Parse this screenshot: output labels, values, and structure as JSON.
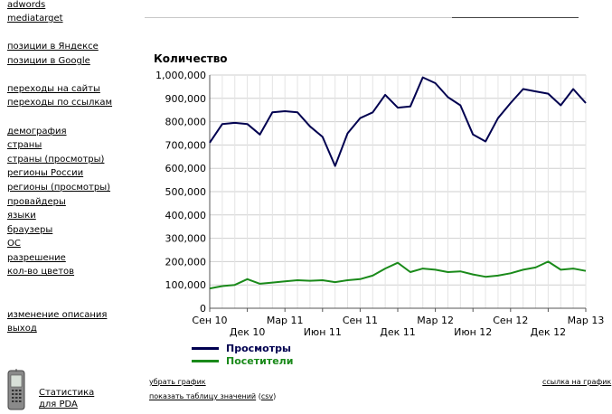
{
  "sidebar": {
    "group1": [
      "adwords",
      "mediatarget"
    ],
    "group2": [
      "позиции в Яндексе",
      "позиции в Google"
    ],
    "group3": [
      "переходы на сайты",
      "переходы по ссылкам"
    ],
    "group4": [
      "демография",
      "страны",
      "страны (просмотры)",
      "регионы России",
      "регионы (просмотры)",
      "провайдеры",
      "языки",
      "браузеры",
      "ОС",
      "разрешение",
      "кол-во цветов"
    ],
    "group5": [
      "изменение описания",
      "выход"
    ],
    "pda": {
      "line1": "Статистика",
      "line2": "для PDA",
      "icon": "pda-phone-icon"
    }
  },
  "chart_controls": {
    "remove_chart": "убрать график",
    "show_table": "показать таблицу значений",
    "csv": "csv",
    "chart_link": "ссылка на график"
  },
  "chart_data": {
    "type": "line",
    "title": "Количество",
    "xlabel": "",
    "ylabel": "",
    "ylim": [
      0,
      1000000
    ],
    "y_ticks": [
      "0",
      "100,000",
      "200,000",
      "300,000",
      "400,000",
      "500,000",
      "600,000",
      "700,000",
      "800,000",
      "900,000",
      "1,000,000"
    ],
    "x_tick_labels": [
      "Сен 10",
      "Дек 10",
      "Мар 11",
      "Июн 11",
      "Сен 11",
      "Дек 11",
      "Мар 12",
      "Июн 12",
      "Сен 12",
      "Дек 12",
      "Мар 13"
    ],
    "grid": true,
    "legend_position": "bottom-left",
    "x": [
      "2010-09-01",
      "2010-10-01",
      "2010-11-01",
      "2010-12-01",
      "2011-01-01",
      "2011-02-01",
      "2011-03-01",
      "2011-04-01",
      "2011-05-01",
      "2011-06-01",
      "2011-07-01",
      "2011-08-01",
      "2011-09-01",
      "2011-10-01",
      "2011-11-01",
      "2011-12-01",
      "2012-01-01",
      "2012-02-01",
      "2012-03-01",
      "2012-04-01",
      "2012-05-01",
      "2012-06-01",
      "2012-07-01",
      "2012-08-01",
      "2012-09-01",
      "2012-10-01",
      "2012-11-01",
      "2012-12-01",
      "2013-01-01",
      "2013-02-01",
      "2013-03-01"
    ],
    "series": [
      {
        "name": "Просмотры",
        "color": "#000050",
        "values": [
          710000,
          790000,
          795000,
          790000,
          745000,
          840000,
          845000,
          840000,
          780000,
          735000,
          610000,
          750000,
          815000,
          840000,
          915000,
          860000,
          865000,
          990000,
          965000,
          905000,
          870000,
          745000,
          715000,
          815000,
          880000,
          940000,
          930000,
          920000,
          870000,
          940000,
          880000
        ]
      },
      {
        "name": "Посетители",
        "color": "#1a8a1a",
        "values": [
          85000,
          95000,
          100000,
          125000,
          105000,
          110000,
          115000,
          120000,
          118000,
          120000,
          112000,
          120000,
          125000,
          140000,
          170000,
          195000,
          155000,
          170000,
          165000,
          155000,
          158000,
          145000,
          135000,
          140000,
          150000,
          165000,
          175000,
          200000,
          165000,
          170000,
          160000
        ]
      }
    ]
  }
}
